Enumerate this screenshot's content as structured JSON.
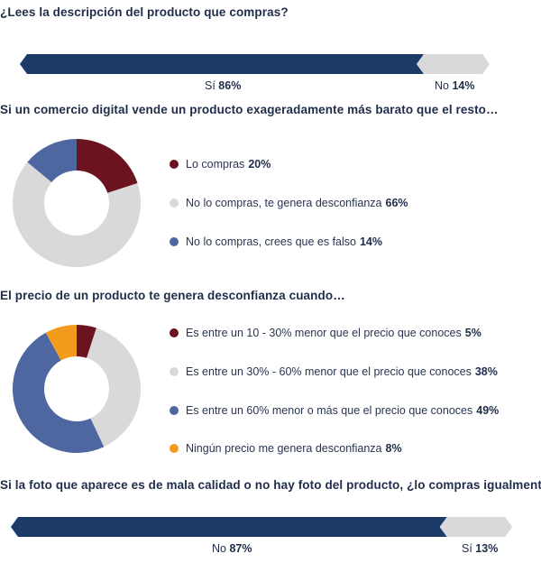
{
  "colors": {
    "navy": "#1c3a67",
    "light_gray": "#d9d9d9",
    "maroon": "#6b1420",
    "slate_blue": "#4e67a0",
    "orange": "#f29b1d"
  },
  "chart_data": [
    {
      "type": "bar",
      "title": "¿Lees la descripción del producto que compras?",
      "series": [
        {
          "name": "Sí",
          "value": 86,
          "label": "86%",
          "color": "#1c3a67"
        },
        {
          "name": "No",
          "value": 14,
          "label": "14%",
          "color": "#d9d9d9"
        }
      ],
      "xlim": [
        0,
        100
      ]
    },
    {
      "type": "pie",
      "title": "Si un comercio digital vende un producto exageradamente más barato que el resto…",
      "slices": [
        {
          "name": "Lo compras",
          "value": 20,
          "label": "20%",
          "color": "#6b1420"
        },
        {
          "name": "No lo compras, te genera desconfianza",
          "value": 66,
          "label": "66%",
          "color": "#d9d9d9"
        },
        {
          "name": "No lo compras, crees que es falso",
          "value": 14,
          "label": "14%",
          "color": "#4e67a0"
        }
      ]
    },
    {
      "type": "pie",
      "title": "El precio de un producto te genera desconfianza cuando…",
      "slices": [
        {
          "name": "Es entre un 10 - 30% menor que el precio que conoces",
          "value": 5,
          "label": "5%",
          "color": "#6b1420"
        },
        {
          "name": "Es entre un 30% - 60% menor que el precio que conoces",
          "value": 38,
          "label": "38%",
          "color": "#d9d9d9"
        },
        {
          "name": "Es entre un 60% menor o más que el precio que conoces",
          "value": 49,
          "label": "49%",
          "color": "#4e67a0"
        },
        {
          "name": "Ningún precio me genera desconfianza",
          "value": 8,
          "label": "8%",
          "color": "#f29b1d"
        }
      ]
    },
    {
      "type": "bar",
      "title": "Si la foto que aparece es de mala calidad o no hay foto del producto, ¿lo compras igualmente?",
      "series": [
        {
          "name": "No",
          "value": 87,
          "label": "87%",
          "color": "#1c3a67"
        },
        {
          "name": "Sí",
          "value": 13,
          "label": "13%",
          "color": "#d9d9d9"
        }
      ],
      "xlim": [
        0,
        100
      ]
    }
  ]
}
